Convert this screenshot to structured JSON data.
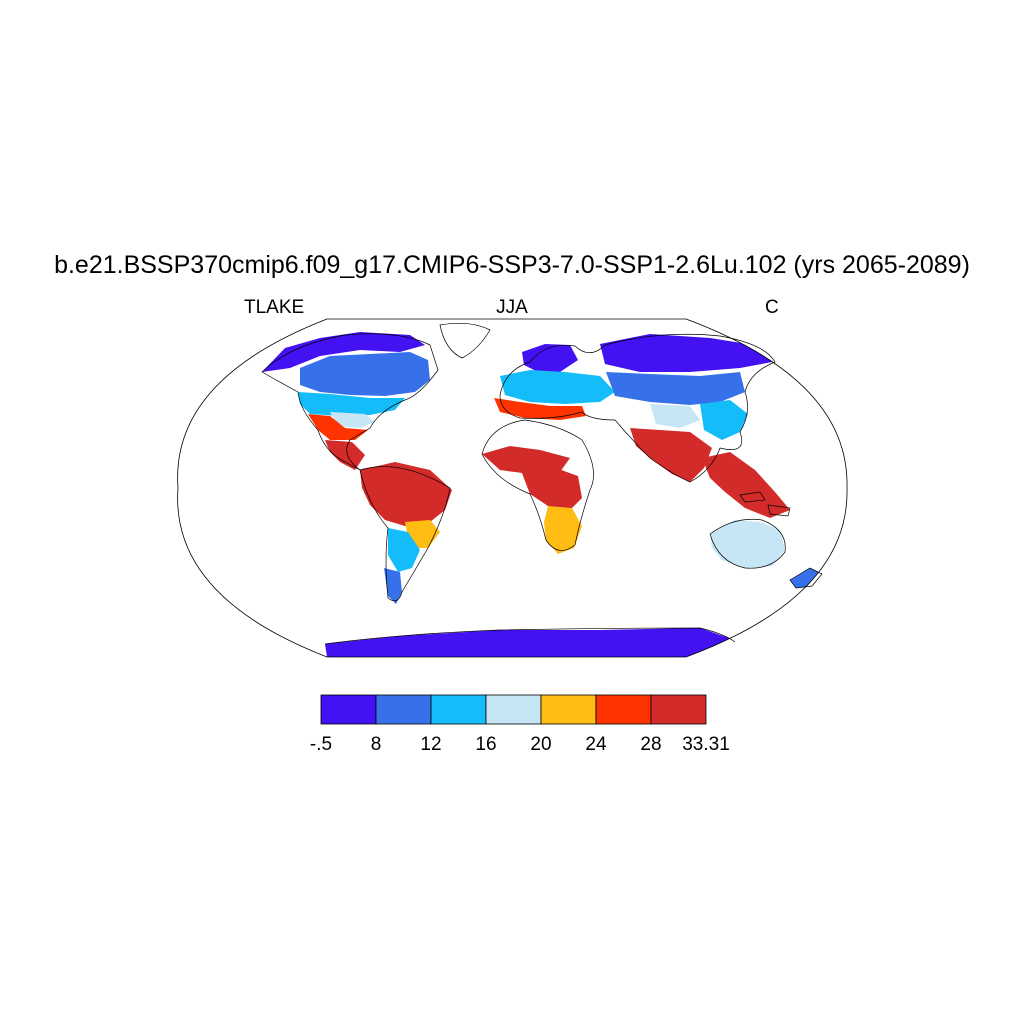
{
  "title": "b.e21.BSSP370cmip6.f09_g17.CMIP6-SSP3-7.0-SSP1-2.6Lu.102 (yrs 2065-2089)",
  "subtitle_left": "TLAKE",
  "subtitle_center": "JJA",
  "subtitle_right": "C",
  "colorbar": {
    "labels": [
      "-.5",
      "8",
      "12",
      "16",
      "20",
      "24",
      "28",
      "33.31"
    ],
    "colors": [
      "#4411f2",
      "#3771ea",
      "#14bdf9",
      "#c6e6f6",
      "#ffbc12",
      "#ff3300",
      "#d32a2a"
    ]
  },
  "map": {
    "projection": "Robinson",
    "variable": "TLAKE",
    "units": "C",
    "season": "JJA",
    "region_levels": [
      {
        "region": "Arctic Canada / Greenland margin",
        "level_bin": 0
      },
      {
        "region": "Canada / Hudson Bay",
        "level_bin": 1
      },
      {
        "region": "Northern United States",
        "level_bin": 2
      },
      {
        "region": "Central United States",
        "level_bin": 3
      },
      {
        "region": "Gulf Coast / Mexico",
        "level_bin": 5
      },
      {
        "region": "Central America",
        "level_bin": 6
      },
      {
        "region": "Amazon basin",
        "level_bin": 6
      },
      {
        "region": "Southern Brazil",
        "level_bin": 4
      },
      {
        "region": "Argentina",
        "level_bin": 2
      },
      {
        "region": "Patagonia",
        "level_bin": 1
      },
      {
        "region": "Scandinavia",
        "level_bin": 0
      },
      {
        "region": "Europe",
        "level_bin": 2
      },
      {
        "region": "Mediterranean",
        "level_bin": 5
      },
      {
        "region": "Siberia",
        "level_bin": 0
      },
      {
        "region": "Central Asia",
        "level_bin": 1
      },
      {
        "region": "Tibetan Plateau",
        "level_bin": 3
      },
      {
        "region": "South Asia",
        "level_bin": 6
      },
      {
        "region": "East Asia",
        "level_bin": 2
      },
      {
        "region": "Southeast Asia",
        "level_bin": 6
      },
      {
        "region": "Sahel / West Africa",
        "level_bin": 6
      },
      {
        "region": "Central Africa",
        "level_bin": 6
      },
      {
        "region": "Southern Africa",
        "level_bin": 4
      },
      {
        "region": "Australia",
        "level_bin": 3
      },
      {
        "region": "New Zealand",
        "level_bin": 1
      },
      {
        "region": "Antarctica",
        "level_bin": 0
      }
    ]
  }
}
